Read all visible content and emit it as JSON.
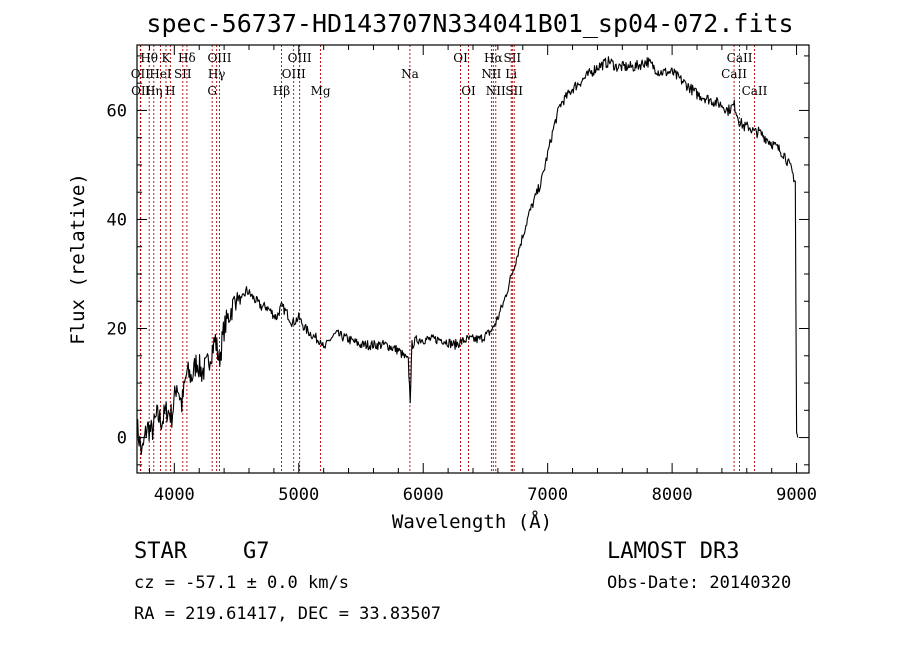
{
  "chart_data": {
    "type": "line",
    "title": "spec-56737-HD143707N334041B01_sp04-072.fits",
    "xlabel": "Wavelength (Å)",
    "ylabel": "Flux (relative)",
    "xlim": [
      3700,
      9100
    ],
    "ylim": [
      -6.5,
      72
    ],
    "xticks": [
      {
        "value": 4000,
        "label": "4000"
      },
      {
        "value": 5000,
        "label": "5000"
      },
      {
        "value": 6000,
        "label": "6000"
      },
      {
        "value": 7000,
        "label": "7000"
      },
      {
        "value": 8000,
        "label": "8000"
      },
      {
        "value": 9000,
        "label": "9000"
      }
    ],
    "yticks": [
      {
        "value": 0,
        "label": "0"
      },
      {
        "value": 20,
        "label": "20"
      },
      {
        "value": 40,
        "label": "40"
      },
      {
        "value": 60,
        "label": "60"
      }
    ],
    "series": [
      {
        "name": "spectrum",
        "x": [
          3700,
          3740,
          3780,
          3820,
          3860,
          3900,
          3940,
          3980,
          4020,
          4060,
          4100,
          4140,
          4180,
          4220,
          4260,
          4300,
          4330,
          4360,
          4400,
          4450,
          4500,
          4540,
          4580,
          4620,
          4660,
          4700,
          4740,
          4780,
          4820,
          4860,
          4900,
          4950,
          5000,
          5050,
          5100,
          5150,
          5180,
          5200,
          5250,
          5300,
          5400,
          5500,
          5600,
          5700,
          5800,
          5880,
          5895,
          5910,
          5950,
          6050,
          6150,
          6250,
          6350,
          6450,
          6520,
          6560,
          6600,
          6650,
          6700,
          6750,
          6800,
          6850,
          6900,
          6950,
          7000,
          7050,
          7100,
          7200,
          7300,
          7400,
          7500,
          7550,
          7600,
          7700,
          7800,
          7900,
          8000,
          8100,
          8200,
          8300,
          8400,
          8450,
          8500,
          8540,
          8580,
          8620,
          8660,
          8700,
          8800,
          8900,
          8960,
          8990,
          9000,
          9010
        ],
        "y": [
          2,
          -3,
          2,
          1,
          4,
          3,
          5,
          4,
          10,
          6,
          12,
          11,
          14,
          12,
          13,
          16,
          18,
          14,
          20,
          23,
          26,
          25,
          27,
          26,
          25,
          24,
          24,
          23,
          22,
          24,
          23,
          21,
          22,
          20,
          19,
          18,
          18,
          16,
          18,
          19,
          18,
          17,
          17,
          17,
          16,
          14,
          7,
          17,
          18,
          18,
          18,
          17,
          18,
          18,
          19,
          20,
          22,
          25,
          29,
          33,
          37,
          41,
          44,
          47,
          52,
          57,
          61,
          64,
          66,
          68,
          69,
          68,
          68,
          68,
          69,
          67,
          67,
          65,
          63,
          62,
          61,
          60,
          61,
          58,
          57,
          57,
          56,
          56,
          54,
          52,
          49,
          47,
          1,
          0
        ]
      }
    ],
    "line_markers": [
      {
        "wavelength": 3727,
        "label": "OII",
        "row": 2
      },
      {
        "wavelength": 3730,
        "label": "OII",
        "row": 3
      },
      {
        "wavelength": 3798,
        "label": "Hθ",
        "row": 1
      },
      {
        "wavelength": 3835,
        "label": "Hη",
        "row": 3
      },
      {
        "wavelength": 3889,
        "label": "HeI",
        "row": 2
      },
      {
        "wavelength": 3933,
        "label": "K",
        "row": 1
      },
      {
        "wavelength": 3968,
        "label": "H",
        "row": 3
      },
      {
        "wavelength": 4068,
        "label": "SII",
        "row": 2
      },
      {
        "wavelength": 4101,
        "label": "Hδ",
        "row": 1
      },
      {
        "wavelength": 4304,
        "label": "G",
        "row": 3
      },
      {
        "wavelength": 4340,
        "label": "Hγ",
        "row": 2
      },
      {
        "wavelength": 4363,
        "label": "OIII",
        "row": 1
      },
      {
        "wavelength": 4861,
        "label": "Hβ",
        "row": 3
      },
      {
        "wavelength": 4959,
        "label": "OIII",
        "row": 2
      },
      {
        "wavelength": 5007,
        "label": "OIII",
        "row": 1
      },
      {
        "wavelength": 5175,
        "label": "Mg",
        "row": 3
      },
      {
        "wavelength": 5893,
        "label": "Na",
        "row": 2
      },
      {
        "wavelength": 6300,
        "label": "OI",
        "row": 1
      },
      {
        "wavelength": 6364,
        "label": "OI",
        "row": 3
      },
      {
        "wavelength": 6548,
        "label": "NII",
        "row": 2
      },
      {
        "wavelength": 6563,
        "label": "Hα",
        "row": 1
      },
      {
        "wavelength": 6583,
        "label": "NII",
        "row": 3
      },
      {
        "wavelength": 6707,
        "label": "Li",
        "row": 2
      },
      {
        "wavelength": 6716,
        "label": "SII",
        "row": 1
      },
      {
        "wavelength": 6731,
        "label": "SII",
        "row": 3
      },
      {
        "wavelength": 8498,
        "label": "CaII",
        "row": 2
      },
      {
        "wavelength": 8542,
        "label": "CaII",
        "row": 1
      },
      {
        "wavelength": 8662,
        "label": "CaII",
        "row": 3
      }
    ],
    "marker_color": "#b30000",
    "line_color": "#000000",
    "grid": false,
    "legend": "none"
  },
  "info": {
    "object_class": "STAR",
    "subclass": "G7",
    "redshift": "cz = -57.1 ± 0.0 km/s",
    "coords": "RA = 219.61417, DEC =  33.83507",
    "survey": "LAMOST DR3",
    "obs_date": "Obs-Date: 20140320"
  }
}
